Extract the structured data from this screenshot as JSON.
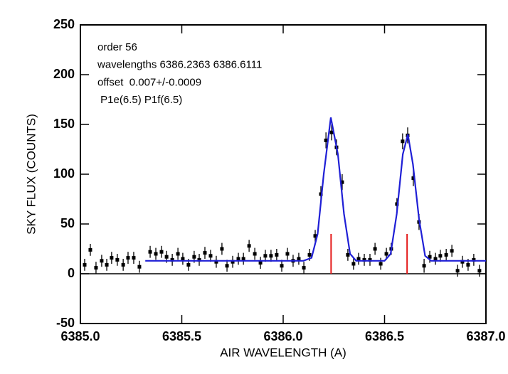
{
  "chart_data": {
    "type": "scatter",
    "xlabel": "AIR WAVELENGTH (A)",
    "ylabel": "SKY FLUX (COUNTS)",
    "annotations": [
      "order 56",
      "wavelengths 6386.2363 6386.6111",
      "offset  0.007+/-0.0009",
      " P1e(6.5) P1f(6.5)"
    ],
    "xlim": [
      6385.0,
      6387.0
    ],
    "ylim": [
      -50,
      250
    ],
    "xticks": [
      {
        "value": 6385.0,
        "label": "6385.0"
      },
      6385.5,
      {
        "value": 6386.0,
        "label": "6386.0"
      },
      6386.5,
      {
        "value": 6387.0,
        "label": "6387.0"
      }
    ],
    "yticks": [
      -50,
      0,
      50,
      100,
      150,
      200,
      250
    ],
    "zero_line": true,
    "points": {
      "color": "#000000",
      "x": [
        6385.021,
        6385.049,
        6385.077,
        6385.105,
        6385.13,
        6385.154,
        6385.182,
        6385.211,
        6385.235,
        6385.263,
        6385.291,
        6385.344,
        6385.372,
        6385.4,
        6385.425,
        6385.453,
        6385.481,
        6385.505,
        6385.533,
        6385.561,
        6385.586,
        6385.614,
        6385.642,
        6385.67,
        6385.698,
        6385.723,
        6385.751,
        6385.779,
        6385.804,
        6385.832,
        6385.86,
        6385.888,
        6385.912,
        6385.94,
        6385.968,
        6385.993,
        6386.021,
        6386.049,
        6386.077,
        6386.102,
        6386.13,
        6386.158,
        6386.186,
        6386.211,
        6386.239,
        6386.263,
        6386.291,
        6386.319,
        6386.347,
        6386.372,
        6386.4,
        6386.428,
        6386.453,
        6386.481,
        6386.509,
        6386.533,
        6386.561,
        6386.589,
        6386.614,
        6386.642,
        6386.67,
        6386.695,
        6386.723,
        6386.751,
        6386.775,
        6386.804,
        6386.832,
        6386.86,
        6386.884,
        6386.912,
        6386.94,
        6386.968
      ],
      "values": [
        9,
        24,
        6,
        13,
        9,
        16,
        14,
        9,
        16,
        16,
        7,
        22,
        20,
        22,
        17,
        14,
        20,
        15,
        9,
        17,
        14,
        21,
        18,
        12,
        25,
        8,
        12,
        15,
        15,
        28,
        20,
        11,
        18,
        18,
        19,
        8,
        20,
        13,
        15,
        6,
        19,
        38,
        80,
        134,
        142,
        127,
        92,
        19,
        10,
        15,
        14,
        14,
        25,
        10,
        20,
        25,
        70,
        133,
        139,
        96,
        52,
        8,
        17,
        15,
        18,
        19,
        23,
        3,
        12,
        9,
        14,
        3
      ],
      "errors": [
        6,
        6,
        6,
        6,
        6,
        6,
        6,
        6,
        6,
        6,
        6,
        6,
        6,
        6,
        6,
        6,
        6,
        6,
        6,
        6,
        6,
        6,
        6,
        6,
        6,
        6,
        6,
        6,
        6,
        6,
        6,
        6,
        6,
        6,
        6,
        6,
        6,
        6,
        6,
        6,
        6,
        6,
        8,
        8,
        8,
        8,
        8,
        6,
        6,
        6,
        6,
        6,
        6,
        6,
        6,
        6,
        6,
        8,
        8,
        8,
        8,
        7,
        6,
        6,
        6,
        6,
        6,
        6,
        6,
        6,
        6,
        6
      ]
    },
    "fit": {
      "color": "#1f1fd6",
      "x": [
        6385.32,
        6386.1,
        6386.14,
        6386.17,
        6386.2,
        6386.235,
        6386.27,
        6386.3,
        6386.33,
        6386.36,
        6386.5,
        6386.53,
        6386.56,
        6386.59,
        6386.615,
        6386.64,
        6386.67,
        6386.7,
        6386.73,
        6387.0
      ],
      "values": [
        13,
        13,
        16,
        40,
        100,
        157,
        120,
        60,
        20,
        13,
        13,
        20,
        60,
        120,
        140,
        110,
        55,
        18,
        13,
        13
      ]
    },
    "reference_lines": {
      "color": "#e41a1a",
      "x": [
        6386.2363,
        6386.6111
      ],
      "y": [
        0,
        40
      ]
    }
  }
}
